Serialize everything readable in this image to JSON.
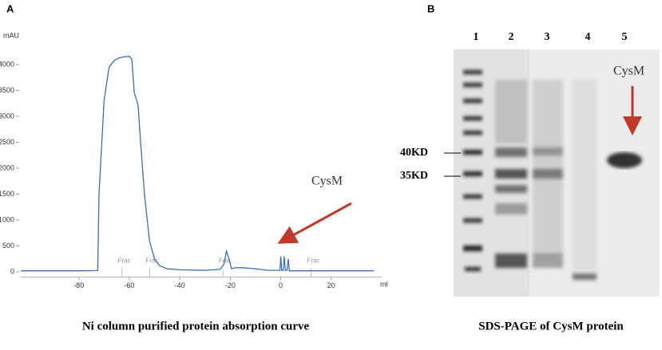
{
  "chart_data": {
    "type": "line",
    "panel_label": "A",
    "ylabel": "mAU",
    "xlabel": "ml",
    "caption": "Ni column purified protein absorption curve",
    "annotations": [
      "Frac",
      "Frac",
      "Frac",
      "Frac",
      "CysM"
    ],
    "xlim": [
      -103,
      40
    ],
    "ylim": [
      -100,
      4300
    ],
    "xticks": [
      -80,
      -60,
      -40,
      -20,
      0,
      20
    ],
    "yticks": [
      0,
      500,
      1000,
      1500,
      2000,
      2500,
      3000,
      3500,
      4000
    ],
    "series": [
      {
        "color": "#3a6fb5",
        "x": [
          -103,
          -80,
          -72.5,
          -72,
          -70,
          -68,
          -66,
          -64,
          -62,
          -60,
          -59,
          -58,
          -57,
          -56.5,
          -55.5,
          -54,
          -52,
          -50,
          -48,
          -45,
          -40,
          -30,
          -24,
          -22.5,
          -21.5,
          -20.5,
          -19.5,
          -18,
          -15,
          -10,
          -5,
          -1,
          -0.3,
          0,
          0.4,
          1,
          1.4,
          1.8,
          2.5,
          3,
          3.4,
          5,
          10,
          20,
          37
        ],
        "values": [
          20,
          20,
          25,
          1500,
          3300,
          3950,
          4080,
          4130,
          4150,
          4160,
          4100,
          3450,
          3300,
          3200,
          2500,
          1500,
          600,
          250,
          120,
          60,
          40,
          30,
          50,
          150,
          400,
          250,
          60,
          80,
          80,
          60,
          30,
          30,
          30,
          300,
          30,
          30,
          300,
          30,
          30,
          250,
          20,
          20,
          20,
          20,
          20
        ]
      }
    ]
  },
  "gel": {
    "panel_label": "B",
    "lanes": [
      "1",
      "2",
      "3",
      "4",
      "5"
    ],
    "markers": [
      "40KD",
      "35KD"
    ],
    "annotation": "CysM",
    "caption": "SDS-PAGE of CysM protein"
  }
}
